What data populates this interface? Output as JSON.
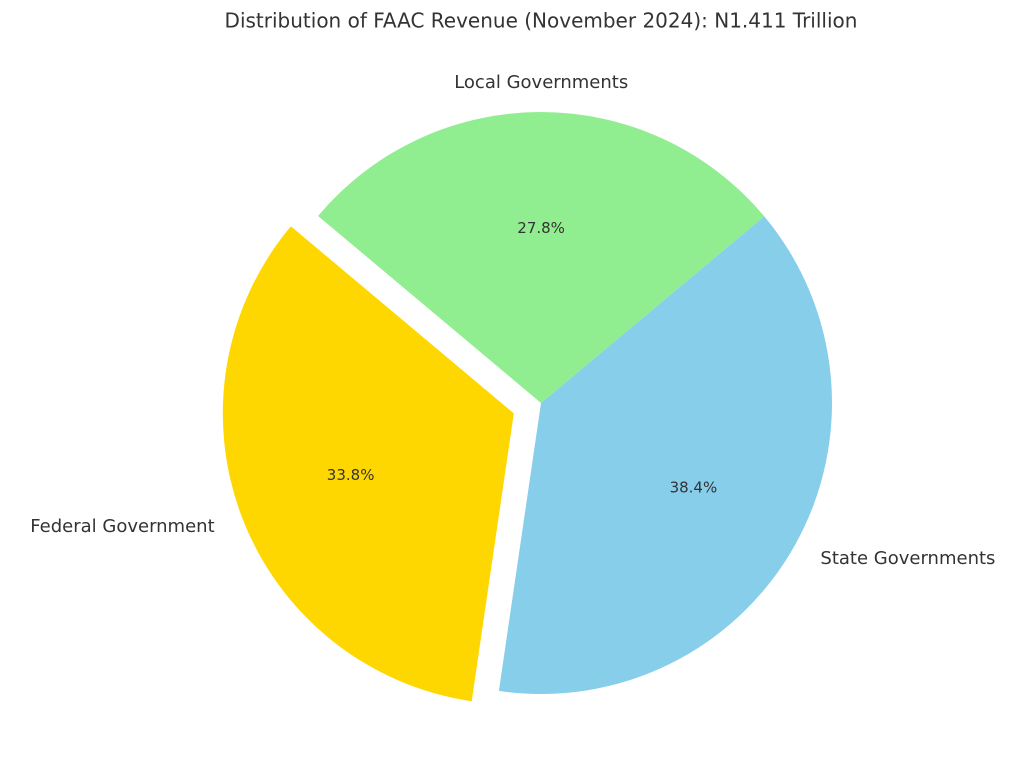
{
  "chart_data": {
    "type": "pie",
    "title": "Distribution of FAAC Revenue (November 2024): N1.411 Trillion",
    "categories": [
      "Federal Government",
      "State Governments",
      "Local Governments"
    ],
    "values": [
      33.8,
      38.4,
      27.8
    ],
    "value_labels": [
      "33.8%",
      "38.4%",
      "27.8%"
    ],
    "colors": [
      "#ffd700",
      "#87ceeb",
      "#90ee90"
    ],
    "explode": [
      0.1,
      0,
      0
    ],
    "startangle": 140
  }
}
